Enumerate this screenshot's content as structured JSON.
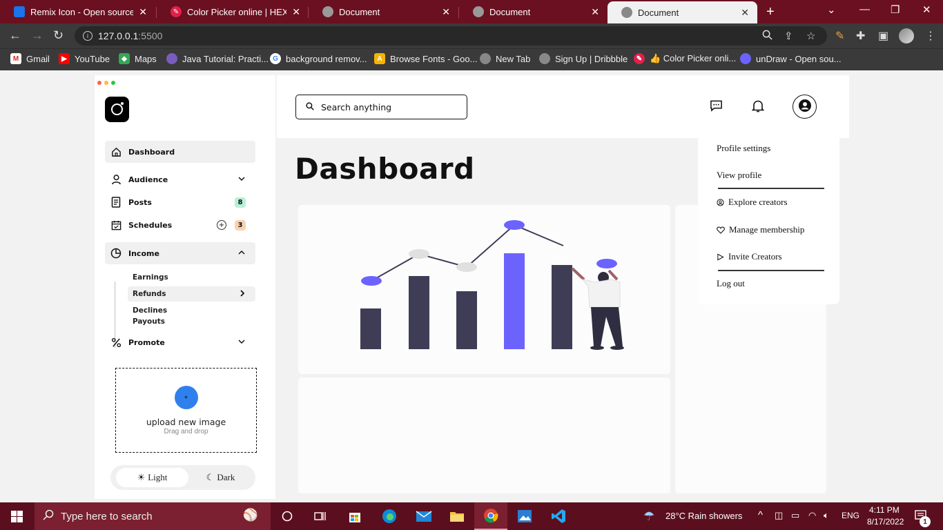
{
  "browser": {
    "tabs": [
      {
        "title": "Remix Icon - Open source ico",
        "favicon_color": "#1a73e8"
      },
      {
        "title": "Color Picker online | HEX C",
        "favicon_color": "#e0204a"
      },
      {
        "title": "Document",
        "favicon_color": "#888888"
      },
      {
        "title": "Document",
        "favicon_color": "#888888"
      },
      {
        "title": "Document",
        "favicon_color": "#888888",
        "active": true
      }
    ],
    "url_host": "127.0.0.1",
    "url_port": ":5500",
    "bookmarks": [
      {
        "label": "Gmail",
        "icon": "gmail-icon",
        "color": "#d93025"
      },
      {
        "label": "YouTube",
        "icon": "youtube-icon",
        "color": "#ff0000"
      },
      {
        "label": "Maps",
        "icon": "maps-icon",
        "color": "#34a853"
      },
      {
        "label": "Java Tutorial: Practi...",
        "icon": "java-icon",
        "color": "#7a5cc0"
      },
      {
        "label": "background remov...",
        "icon": "google-icon",
        "color": "#4285f4"
      },
      {
        "label": "Browse Fonts - Goo...",
        "icon": "fonts-icon",
        "color": "#f4b400"
      },
      {
        "label": "New Tab",
        "icon": "globe-icon",
        "color": "#888888"
      },
      {
        "label": "Sign Up | Dribbble",
        "icon": "globe-icon",
        "color": "#888888"
      },
      {
        "label": "👍 Color Picker onli...",
        "icon": "colorpicker-icon",
        "color": "#e0204a"
      },
      {
        "label": "unDraw - Open sou...",
        "icon": "undraw-icon",
        "color": "#6c63ff"
      }
    ]
  },
  "sidebar": {
    "menu": [
      {
        "label": "Dashboard",
        "icon": "home-icon",
        "selected": true
      },
      {
        "label": "Audience",
        "icon": "user-icon",
        "chevron": "down"
      },
      {
        "label": "Posts",
        "icon": "document-icon",
        "badge": "8",
        "badge_color": "#b8f0d8"
      },
      {
        "label": "Schedules",
        "icon": "calendar-icon",
        "badge": "3",
        "badge_color": "#fbd2b0"
      },
      {
        "label": "Income",
        "icon": "pie-chart-icon",
        "chevron": "up",
        "selected": true
      },
      {
        "label": "Promote",
        "icon": "percent-icon",
        "chevron": "down"
      }
    ],
    "income_submenu": [
      "Earnings",
      "Refunds",
      "Declines",
      "Payouts"
    ],
    "upload": {
      "button": "+",
      "title": "upload new image",
      "subtitle": "Drag and drop"
    },
    "theme": {
      "light": "Light",
      "dark": "Dark",
      "active": "light"
    }
  },
  "header": {
    "search_placeholder": "Search anything"
  },
  "main": {
    "title": "Dashboard"
  },
  "profile_dropdown": {
    "items": [
      {
        "label": "Profile settings",
        "icon": ""
      },
      {
        "label": "View profile",
        "icon": ""
      },
      {
        "label": "Explore creators",
        "icon": "user-circle-icon"
      },
      {
        "label": "Manage membership",
        "icon": "heart-icon"
      },
      {
        "label": "Invite Creators",
        "icon": "play-outline-icon"
      },
      {
        "label": "Log out",
        "icon": ""
      }
    ]
  },
  "illustration": {
    "accent": "#6c63ff",
    "bar_dark": "#3f3d56"
  },
  "taskbar": {
    "search_placeholder": "Type here to search",
    "weather": "28°C  Rain showers",
    "language": "ENG",
    "time": "4:11 PM",
    "date": "8/17/2022",
    "notifications": "1"
  }
}
